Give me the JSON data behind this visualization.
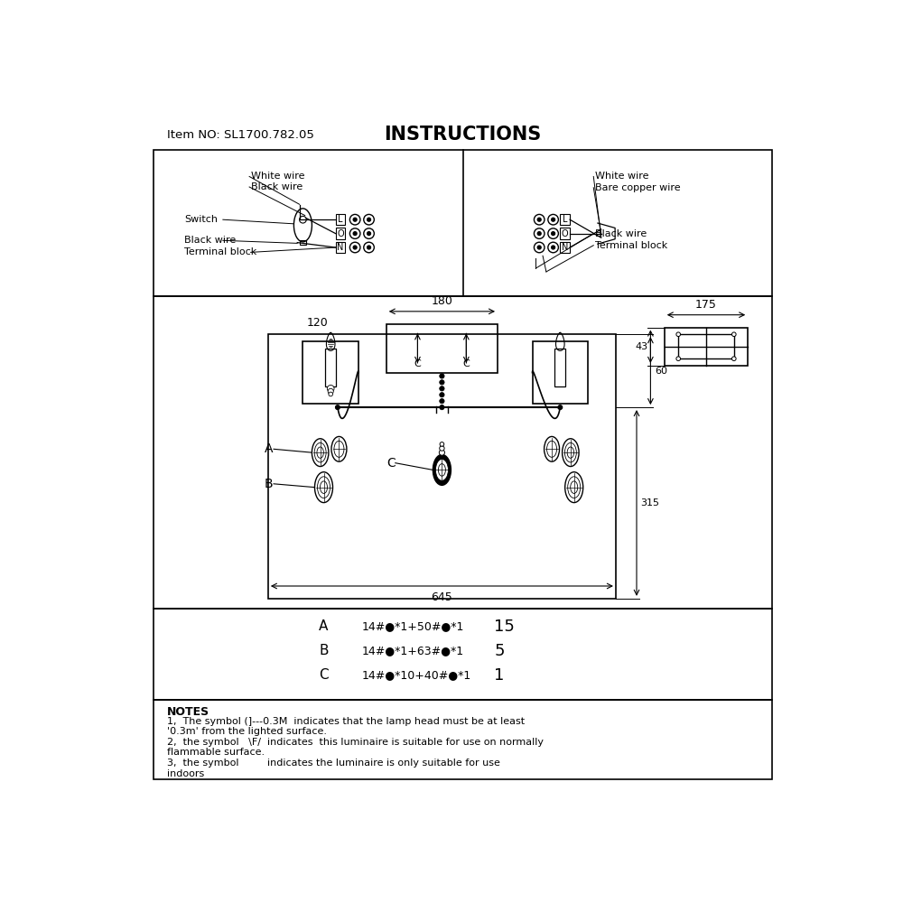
{
  "title": "INSTRUCTIONS",
  "item_no": "Item NO: SL1700.782.05",
  "bg_color": "#ffffff",
  "line_color": "#000000",
  "text_color": "#000000",
  "notes_title": "NOTES",
  "notes_lines": [
    "1,  The symbol (]---0.3M  indicates that the lamp head must be at least",
    "'0.3m' from the lighted surface.",
    "2,  the symbol   \\F/  indicates  this luminaire is suitable for use on normally",
    "flammable surface.",
    "3,  the symbol         indicates the luminaire is only suitable for use",
    "indoors"
  ],
  "parts": [
    {
      "label": "A",
      "desc": "14#●*1+50#●*1",
      "qty": "15"
    },
    {
      "label": "B",
      "desc": "14#●*1+63#●*1",
      "qty": "5"
    },
    {
      "label": "C",
      "desc": "14#●*10+40#●*1",
      "qty": "1"
    }
  ],
  "dim_180": "180",
  "dim_120": "120",
  "dim_645": "645",
  "dim_175": "175",
  "dim_43": "43",
  "dim_60": "60",
  "dim_315": "315"
}
